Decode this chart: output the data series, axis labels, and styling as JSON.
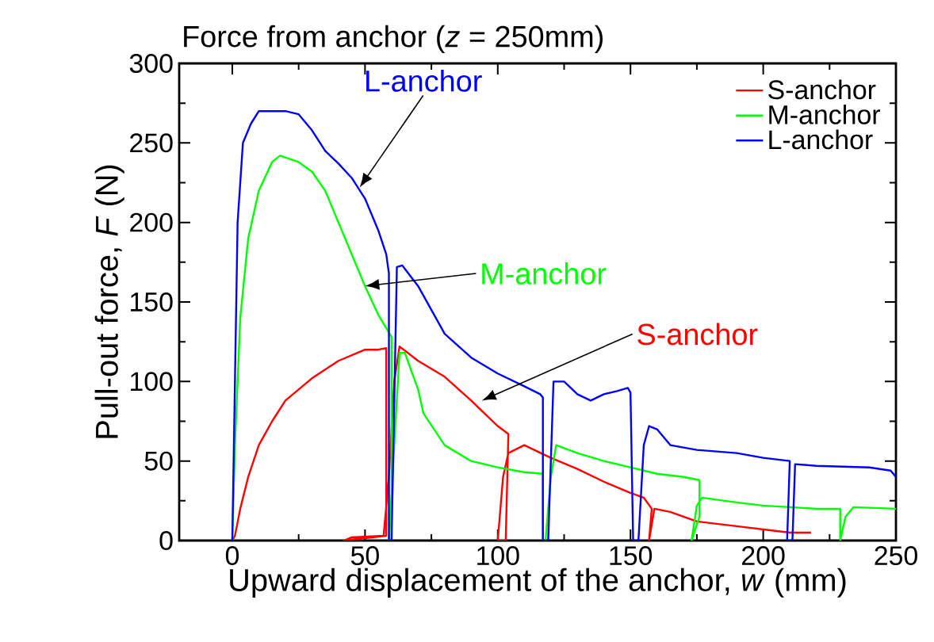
{
  "chart_data": {
    "type": "line",
    "title": "Force from anchor (*z* = 250mm)",
    "xlabel": "Upward displacement of the anchor, *w* (mm)",
    "ylabel": "Pull-out force, *F* (N)",
    "xlim": [
      -20,
      250
    ],
    "ylim": [
      0,
      300
    ],
    "xticks": [
      0,
      50,
      100,
      150,
      200,
      250
    ],
    "yticks": [
      0,
      50,
      100,
      150,
      200,
      250,
      300
    ],
    "grid": false,
    "legend": "top right",
    "marker": "none",
    "line_style": "solid",
    "series": [
      {
        "name": "S-anchor",
        "color": "#ff0000",
        "x": [
          0,
          1,
          3,
          6,
          10,
          15,
          20,
          30,
          40,
          50,
          55,
          58,
          58,
          42,
          45,
          57,
          59,
          61,
          63,
          70,
          80,
          90,
          100,
          104,
          103,
          100,
          102,
          104,
          110,
          120,
          130,
          140,
          150,
          155,
          158,
          157,
          159,
          165,
          175,
          190,
          200,
          210,
          218
        ],
        "values": [
          0,
          3,
          20,
          40,
          60,
          75,
          88,
          102,
          113,
          120,
          120,
          121,
          3,
          0,
          2,
          3,
          40,
          100,
          122,
          113,
          103,
          88,
          72,
          67,
          0,
          0,
          40,
          55,
          60,
          52,
          45,
          37,
          30,
          27,
          20,
          0,
          20,
          18,
          12,
          9,
          7,
          5,
          5
        ]
      },
      {
        "name": "M-anchor",
        "color": "#00ff00",
        "x": [
          0,
          1,
          3,
          6,
          10,
          15,
          18,
          25,
          30,
          35,
          40,
          45,
          50,
          55,
          60,
          60,
          59,
          61,
          63,
          65,
          70,
          72,
          80,
          90,
          100,
          110,
          117,
          117,
          118,
          120,
          122,
          130,
          140,
          150,
          160,
          170,
          176,
          176,
          173,
          175,
          177,
          190,
          200,
          210,
          220,
          229,
          229,
          231,
          234,
          250
        ],
        "values": [
          0,
          60,
          140,
          190,
          220,
          238,
          242,
          238,
          232,
          220,
          200,
          180,
          160,
          142,
          128,
          0,
          0,
          60,
          118,
          118,
          95,
          80,
          60,
          50,
          46,
          43,
          42,
          0,
          0,
          40,
          60,
          55,
          50,
          46,
          42,
          40,
          38,
          15,
          0,
          22,
          27,
          24,
          22,
          21,
          20,
          20,
          0,
          15,
          21,
          20
        ]
      },
      {
        "name": "L-anchor",
        "color": "#0000ff",
        "x": [
          0,
          1,
          2,
          4,
          7,
          10,
          20,
          25,
          30,
          35,
          40,
          45,
          50,
          55,
          58,
          59,
          59,
          60,
          62,
          64,
          70,
          75,
          80,
          90,
          100,
          110,
          116,
          117,
          117,
          119,
          121,
          125,
          130,
          135,
          140,
          145,
          149,
          150,
          151,
          153,
          155,
          157,
          160,
          165,
          175,
          190,
          200,
          210,
          209,
          211,
          212,
          220,
          240,
          248,
          250
        ],
        "values": [
          0,
          100,
          200,
          250,
          262,
          270,
          270,
          268,
          258,
          245,
          237,
          228,
          215,
          195,
          180,
          168,
          0,
          0,
          172,
          173,
          160,
          145,
          130,
          115,
          105,
          97,
          92,
          90,
          0,
          0,
          100,
          100,
          92,
          88,
          92,
          94,
          96,
          93,
          0,
          0,
          60,
          72,
          70,
          60,
          57,
          55,
          52,
          50,
          0,
          0,
          48,
          47,
          46,
          44,
          40
        ]
      }
    ],
    "annotations": [
      {
        "text": "L-anchor",
        "x": 48,
        "y": 222
      },
      {
        "text": "M-anchor",
        "x": 50,
        "y": 160
      },
      {
        "text": "S-anchor",
        "x": 94,
        "y": 88
      }
    ]
  }
}
